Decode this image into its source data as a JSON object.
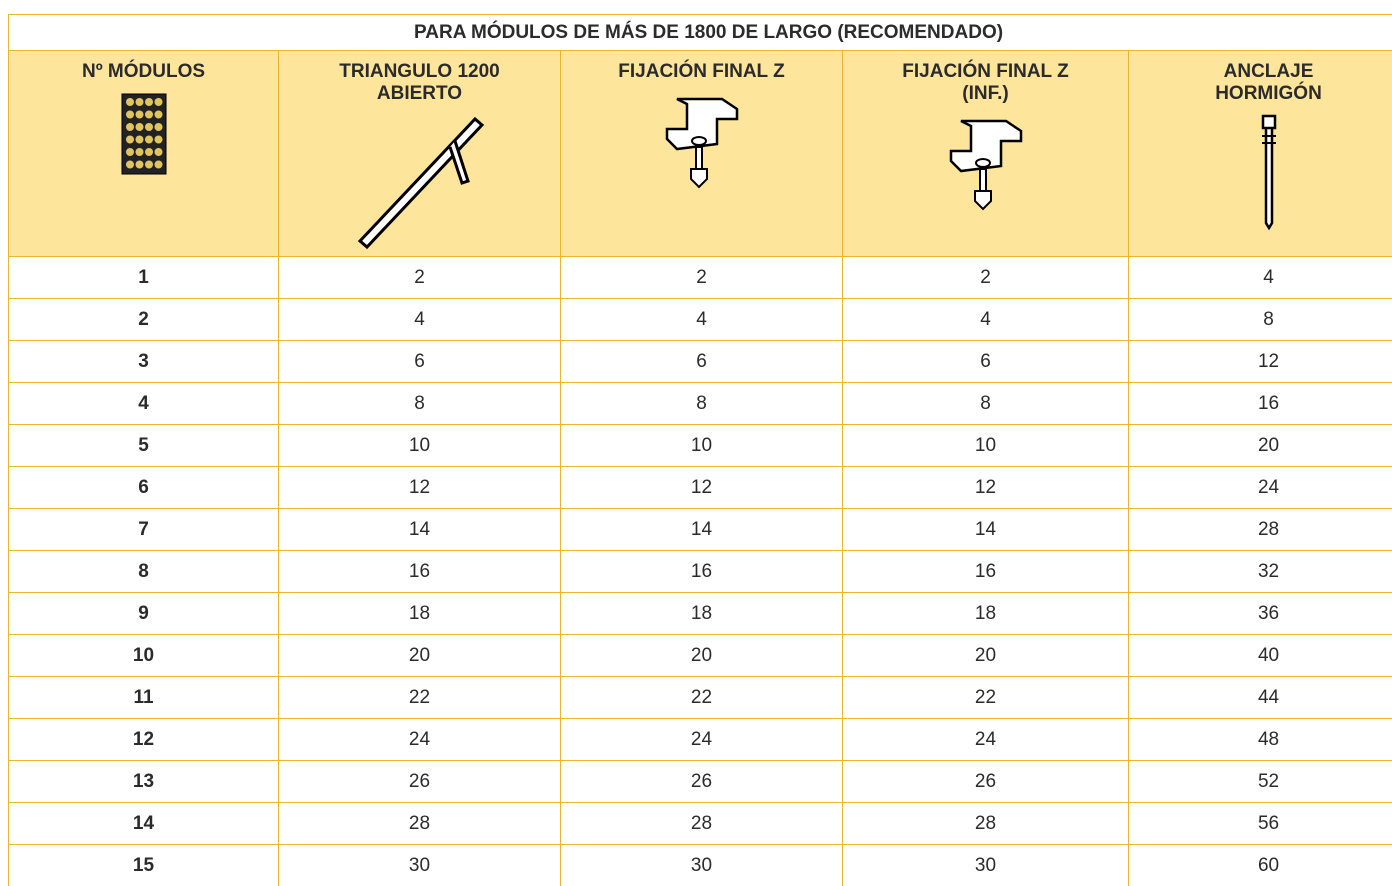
{
  "table": {
    "title": "PARA MÓDULOS DE MÁS DE 1800 DE LARGO (RECOMENDADO)",
    "columns": [
      "Nº MÓDULOS",
      "TRIANGULO 1200 ABIERTO",
      "FIJACIÓN FINAL Z",
      "FIJACIÓN FINAL Z (INF.)",
      "ANCLAJE HORMIGÓN"
    ],
    "rows": [
      [
        1,
        2,
        2,
        2,
        4
      ],
      [
        2,
        4,
        4,
        4,
        8
      ],
      [
        3,
        6,
        6,
        6,
        12
      ],
      [
        4,
        8,
        8,
        8,
        16
      ],
      [
        5,
        10,
        10,
        10,
        20
      ],
      [
        6,
        12,
        12,
        12,
        24
      ],
      [
        7,
        14,
        14,
        14,
        28
      ],
      [
        8,
        16,
        16,
        16,
        32
      ],
      [
        9,
        18,
        18,
        18,
        36
      ],
      [
        10,
        20,
        20,
        20,
        40
      ],
      [
        11,
        22,
        22,
        22,
        44
      ],
      [
        12,
        24,
        24,
        24,
        48
      ],
      [
        13,
        26,
        26,
        26,
        52
      ],
      [
        14,
        28,
        28,
        28,
        56
      ],
      [
        15,
        30,
        30,
        30,
        60
      ]
    ]
  }
}
